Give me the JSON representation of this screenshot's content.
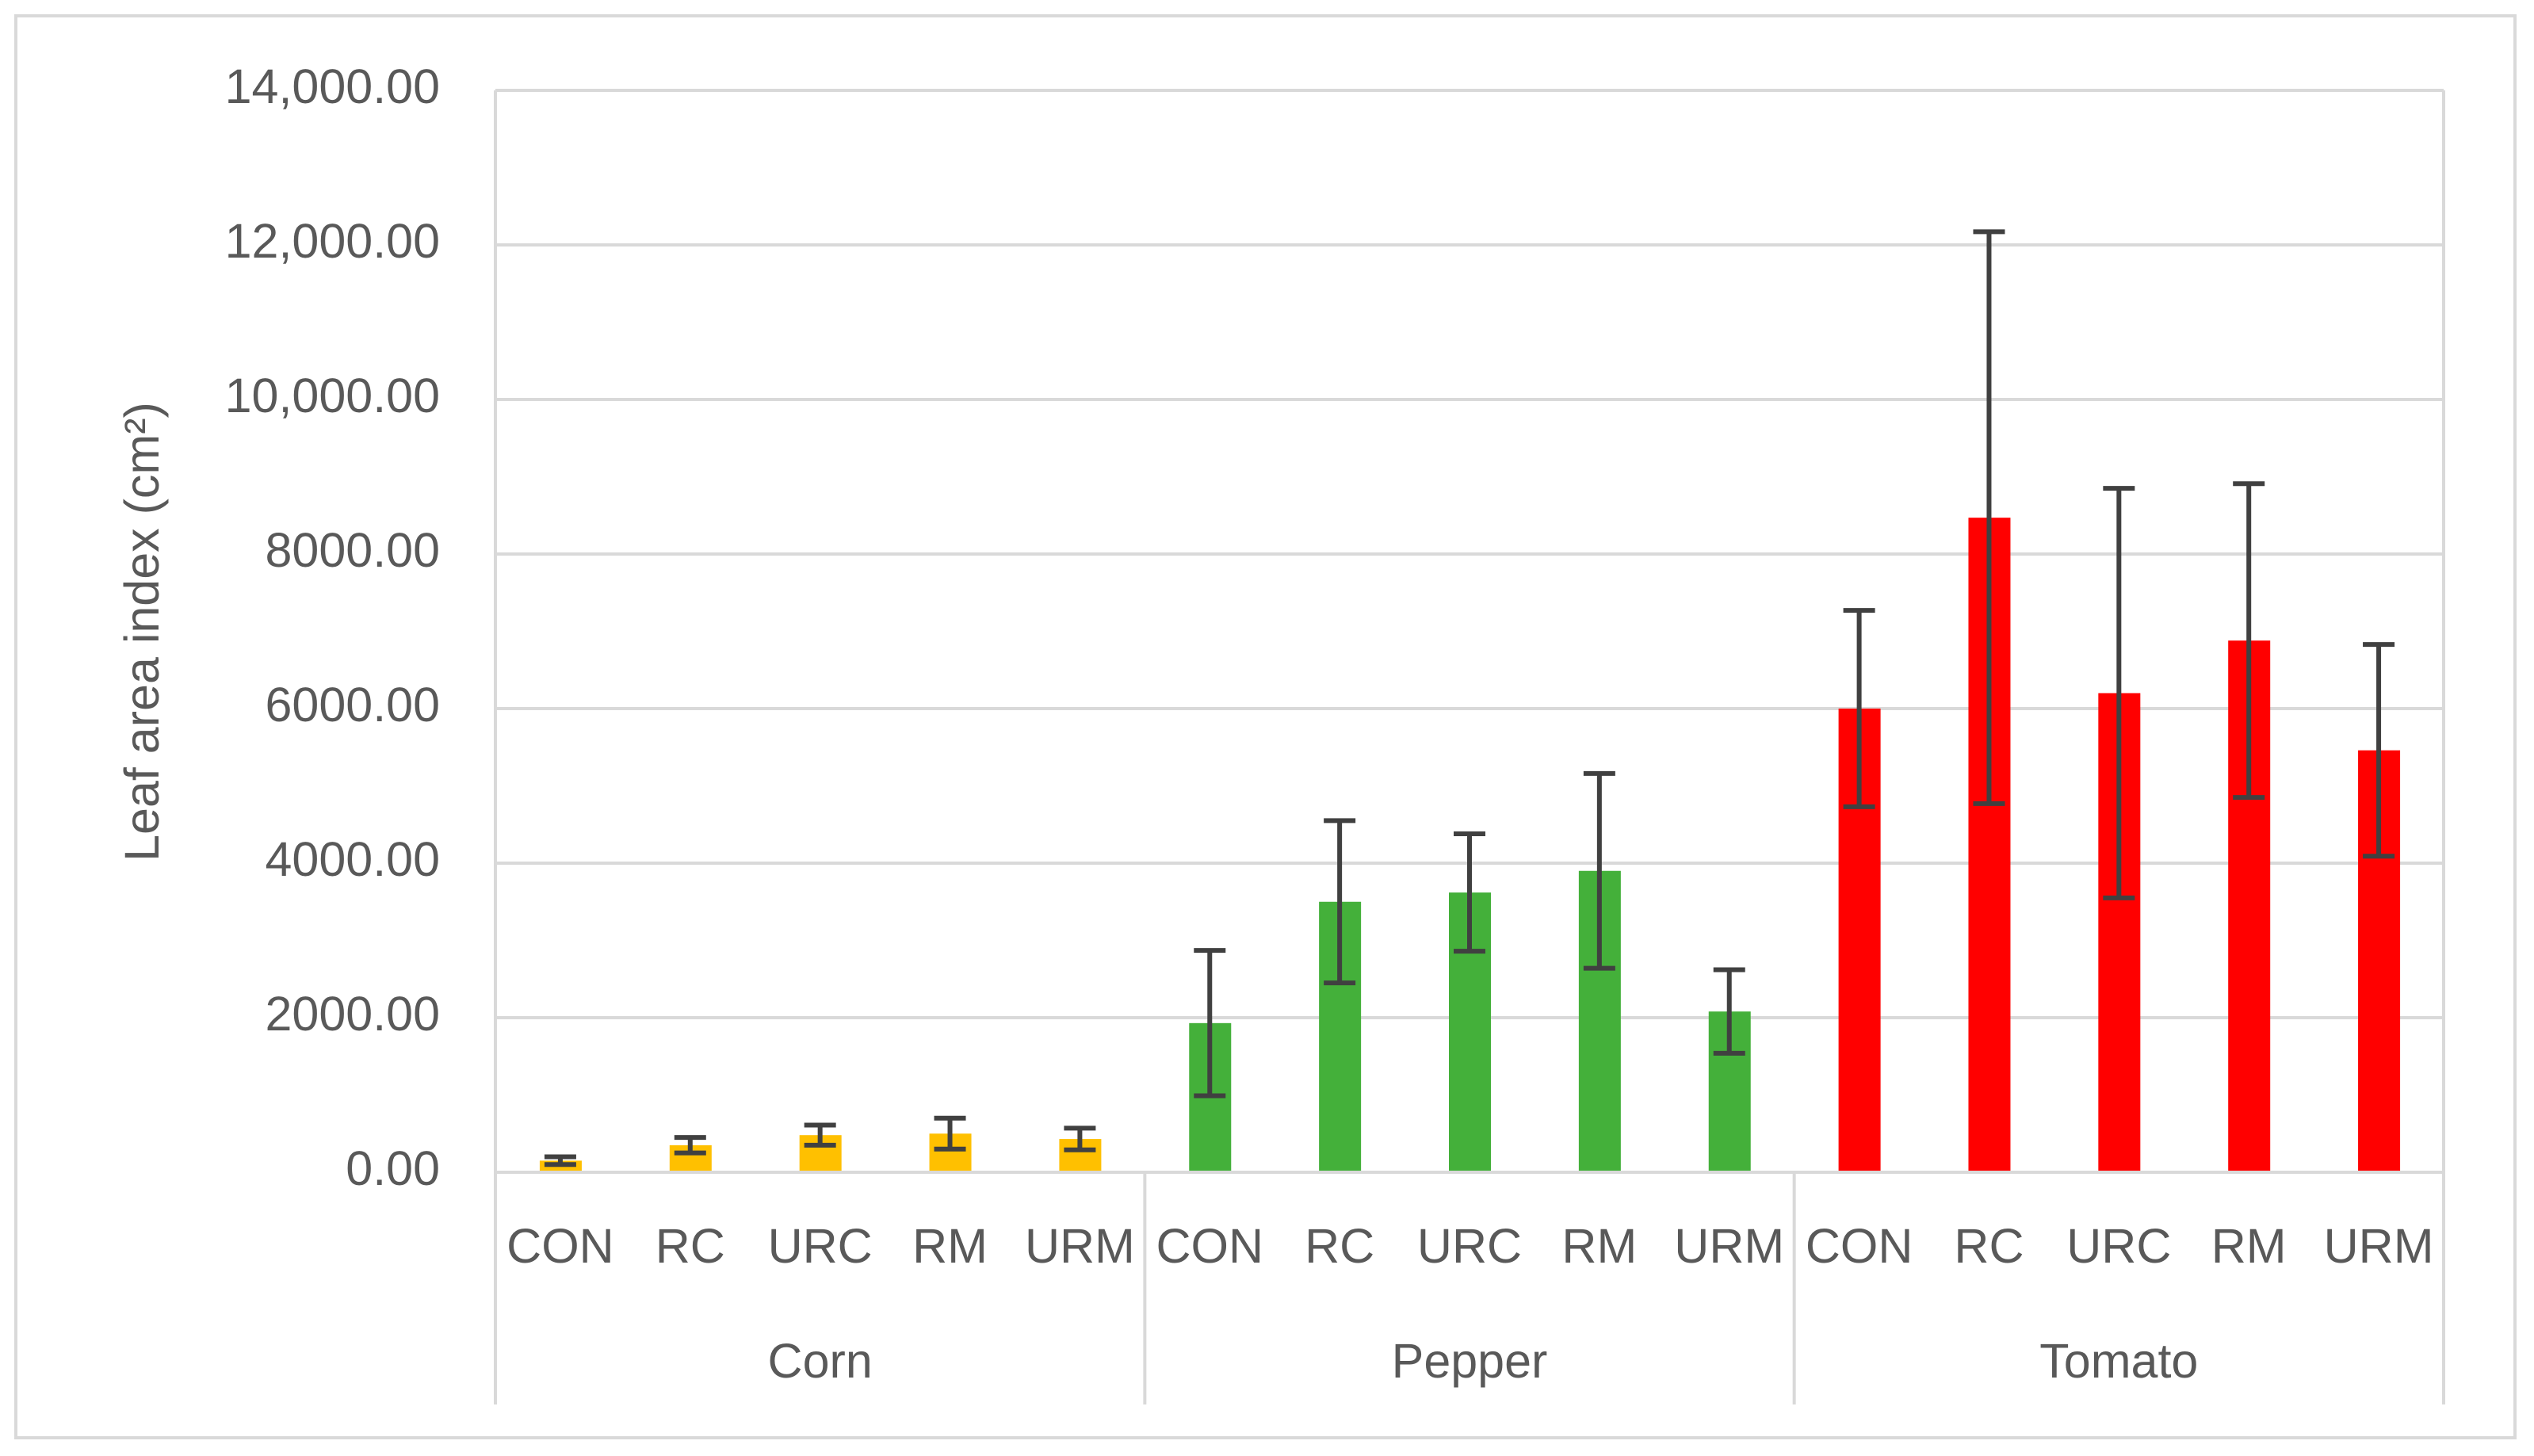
{
  "chart_data": {
    "type": "bar",
    "y_label": "Leaf area index (cm²)",
    "ylim": [
      0,
      14000
    ],
    "yticks": [
      {
        "value": 0,
        "label": "0.00"
      },
      {
        "value": 2000,
        "label": "2000.00"
      },
      {
        "value": 4000,
        "label": "4000.00"
      },
      {
        "value": 6000,
        "label": "6000.00"
      },
      {
        "value": 8000,
        "label": "8000.00"
      },
      {
        "value": 10000,
        "label": "10,000.00"
      },
      {
        "value": 12000,
        "label": "12,000.00"
      },
      {
        "value": 14000,
        "label": "14,000.00"
      }
    ],
    "grid": true,
    "groups": [
      {
        "name": "Corn",
        "color": "#ffc000",
        "categories": [
          "CON",
          "RC",
          "URC",
          "RM",
          "URM"
        ],
        "values": [
          150,
          350,
          480,
          500,
          430
        ],
        "errors": [
          50,
          100,
          130,
          200,
          140
        ]
      },
      {
        "name": "Pepper",
        "color": "#44b03a",
        "categories": [
          "CON",
          "RC",
          "URC",
          "RM",
          "URM"
        ],
        "values": [
          1930,
          3500,
          3620,
          3900,
          2080
        ],
        "errors": [
          940,
          1050,
          760,
          1260,
          540
        ]
      },
      {
        "name": "Tomato",
        "color": "#ff0000",
        "categories": [
          "CON",
          "RC",
          "URC",
          "RM",
          "URM"
        ],
        "values": [
          6000,
          8470,
          6200,
          6880,
          5460
        ],
        "errors": [
          1270,
          3700,
          2650,
          2030,
          1370
        ]
      }
    ]
  }
}
